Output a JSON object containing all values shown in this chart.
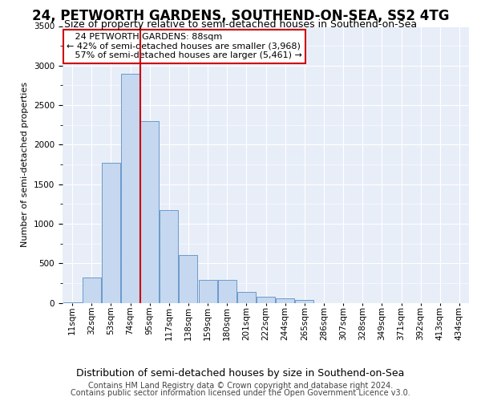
{
  "title": "24, PETWORTH GARDENS, SOUTHEND-ON-SEA, SS2 4TG",
  "subtitle": "Size of property relative to semi-detached houses in Southend-on-Sea",
  "xlabel": "Distribution of semi-detached houses by size in Southend-on-Sea",
  "ylabel": "Number of semi-detached properties",
  "footer_line1": "Contains HM Land Registry data © Crown copyright and database right 2024.",
  "footer_line2": "Contains public sector information licensed under the Open Government Licence v3.0.",
  "property_label": "24 PETWORTH GARDENS: 88sqm",
  "pct_smaller": 42,
  "count_smaller": 3968,
  "pct_larger": 57,
  "count_larger": 5461,
  "bar_categories": [
    "11sqm",
    "32sqm",
    "53sqm",
    "74sqm",
    "95sqm",
    "117sqm",
    "138sqm",
    "159sqm",
    "180sqm",
    "201sqm",
    "222sqm",
    "244sqm",
    "265sqm",
    "286sqm",
    "307sqm",
    "328sqm",
    "349sqm",
    "371sqm",
    "392sqm",
    "413sqm",
    "434sqm"
  ],
  "bar_values": [
    10,
    315,
    1775,
    2900,
    2300,
    1175,
    600,
    290,
    290,
    140,
    80,
    60,
    40,
    0,
    0,
    0,
    0,
    0,
    0,
    0,
    0
  ],
  "bar_fill_color": "#c5d8f0",
  "bar_edge_color": "#5b8ec4",
  "vline_color": "#cc0000",
  "vline_x": 3.5,
  "ylim_max": 3500,
  "ytick_step": 500,
  "bg_color": "#e8eef8",
  "annotation_box_edge_color": "#cc0000",
  "title_fontsize": 12,
  "subtitle_fontsize": 9,
  "xlabel_fontsize": 9,
  "ylabel_fontsize": 8,
  "tick_fontsize": 7.5,
  "ann_fontsize": 8,
  "footer_fontsize": 7
}
